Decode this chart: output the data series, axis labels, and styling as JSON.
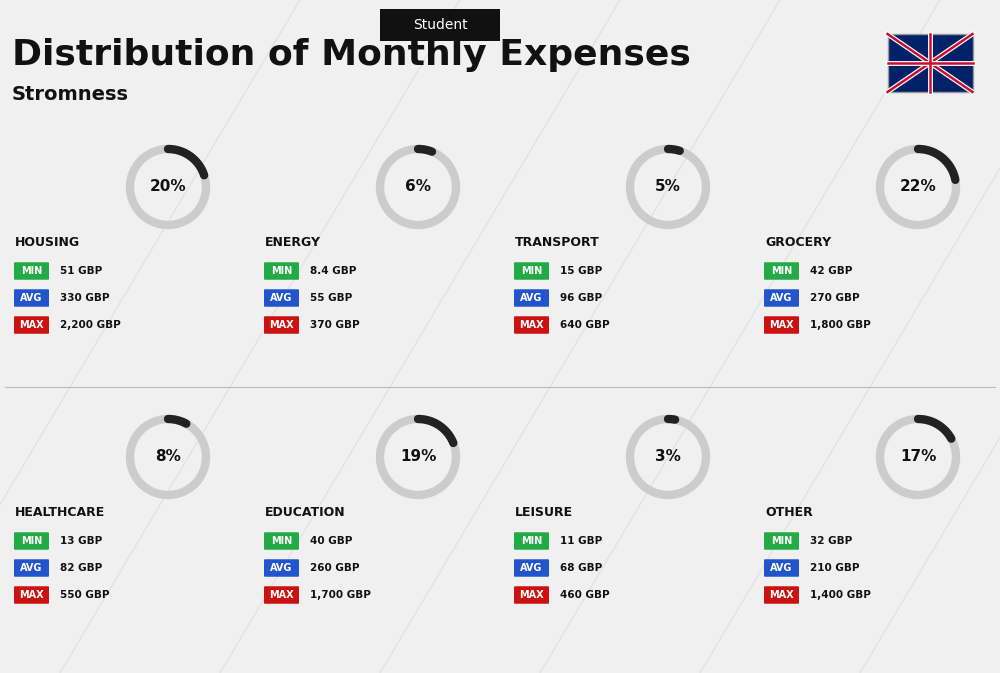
{
  "title": "Distribution of Monthly Expenses",
  "subtitle": "Student",
  "location": "Stromness",
  "bg_color": "#f0f0f0",
  "categories": [
    {
      "name": "HOUSING",
      "pct": 20,
      "min": "51 GBP",
      "avg": "330 GBP",
      "max": "2,200 GBP",
      "col": 0,
      "row": 0
    },
    {
      "name": "ENERGY",
      "pct": 6,
      "min": "8.4 GBP",
      "avg": "55 GBP",
      "max": "370 GBP",
      "col": 1,
      "row": 0
    },
    {
      "name": "TRANSPORT",
      "pct": 5,
      "min": "15 GBP",
      "avg": "96 GBP",
      "max": "640 GBP",
      "col": 2,
      "row": 0
    },
    {
      "name": "GROCERY",
      "pct": 22,
      "min": "42 GBP",
      "avg": "270 GBP",
      "max": "1,800 GBP",
      "col": 3,
      "row": 0
    },
    {
      "name": "HEALTHCARE",
      "pct": 8,
      "min": "13 GBP",
      "avg": "82 GBP",
      "max": "550 GBP",
      "col": 0,
      "row": 1
    },
    {
      "name": "EDUCATION",
      "pct": 19,
      "min": "40 GBP",
      "avg": "260 GBP",
      "max": "1,700 GBP",
      "col": 1,
      "row": 1
    },
    {
      "name": "LEISURE",
      "pct": 3,
      "min": "11 GBP",
      "avg": "68 GBP",
      "max": "460 GBP",
      "col": 2,
      "row": 1
    },
    {
      "name": "OTHER",
      "pct": 17,
      "min": "32 GBP",
      "avg": "210 GBP",
      "max": "1,400 GBP",
      "col": 3,
      "row": 1
    }
  ],
  "min_color": "#22aa44",
  "avg_color": "#2255cc",
  "max_color": "#cc1111",
  "label_color": "#ffffff",
  "arc_dark": "#222222",
  "arc_light": "#cccccc",
  "text_color": "#111111"
}
